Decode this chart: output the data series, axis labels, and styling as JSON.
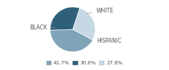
{
  "labels": [
    "WHITE",
    "BLACK",
    "HISPANIC"
  ],
  "values": [
    27.8,
    41.7,
    30.6
  ],
  "colors": [
    "#c5d8e4",
    "#7fa4b8",
    "#2e607a"
  ],
  "legend_order": [
    1,
    2,
    0
  ],
  "legend_labels": [
    "41.7%",
    "30.6%",
    "27.8%"
  ],
  "legend_colors": [
    "#7fa4b8",
    "#2e607a",
    "#c5d8e4"
  ],
  "startangle": 72,
  "font_size": 5.5
}
